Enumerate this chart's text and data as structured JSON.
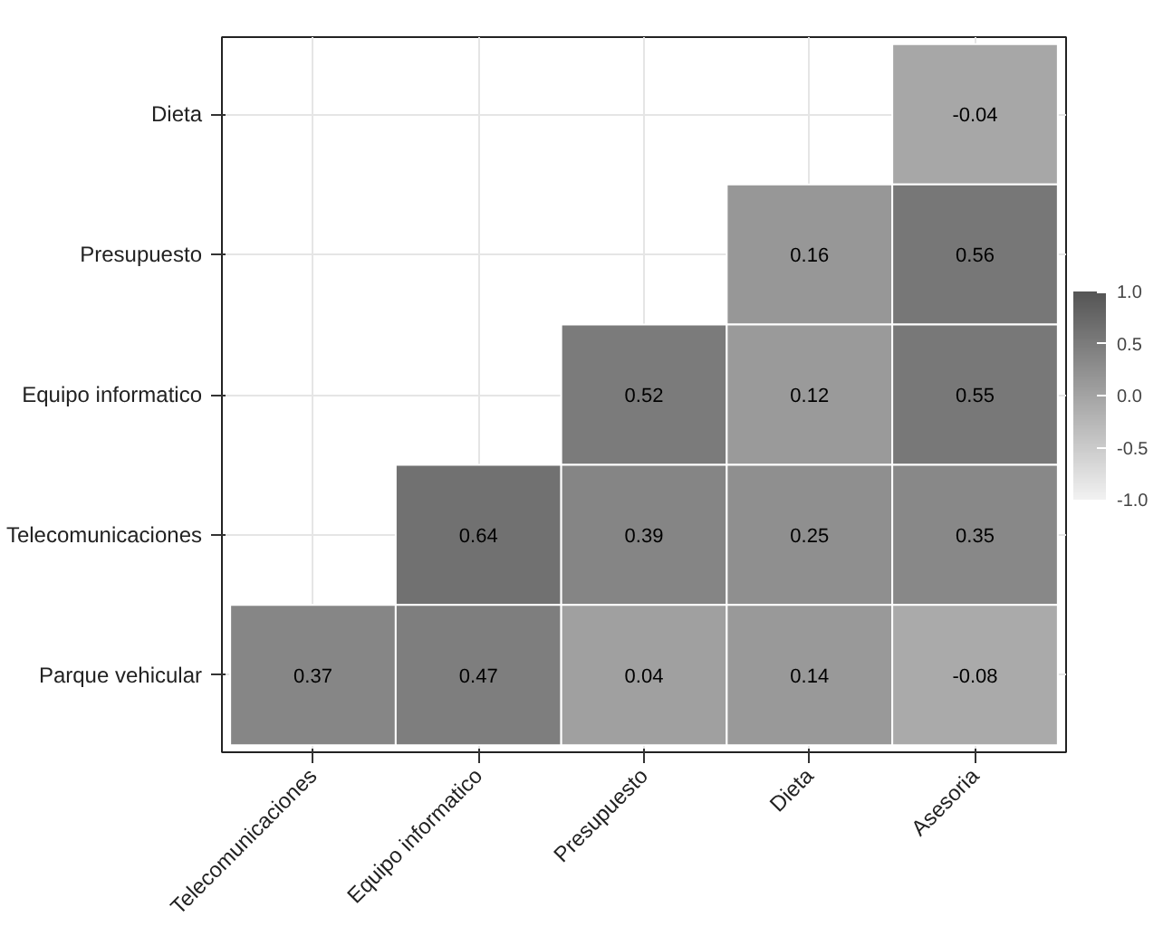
{
  "chart_data": {
    "type": "heatmap",
    "categories": [
      "Telecomunicaciones",
      "Equipo informatico",
      "Presupuesto",
      "Dieta",
      "Asesoria"
    ],
    "y_categories": [
      "Dieta",
      "Presupuesto",
      "Equipo informatico",
      "Telecomunicaciones",
      "Parque vehicular"
    ],
    "cells": [
      [
        null,
        null,
        null,
        null,
        -0.04
      ],
      [
        null,
        null,
        null,
        0.16,
        0.56
      ],
      [
        null,
        null,
        0.52,
        0.12,
        0.55
      ],
      [
        null,
        0.64,
        0.39,
        0.25,
        0.35
      ],
      [
        0.37,
        0.47,
        0.04,
        0.14,
        -0.08
      ]
    ],
    "data_labels": true,
    "clim": [
      -1,
      1
    ],
    "cticks": [
      {
        "value": 1,
        "label": "1.0"
      },
      {
        "value": 0.5,
        "label": "0.5"
      },
      {
        "value": 0,
        "label": "0.0"
      },
      {
        "value": -0.5,
        "label": "-0.5"
      },
      {
        "value": -1,
        "label": "-1.0"
      }
    ],
    "grid": true
  }
}
